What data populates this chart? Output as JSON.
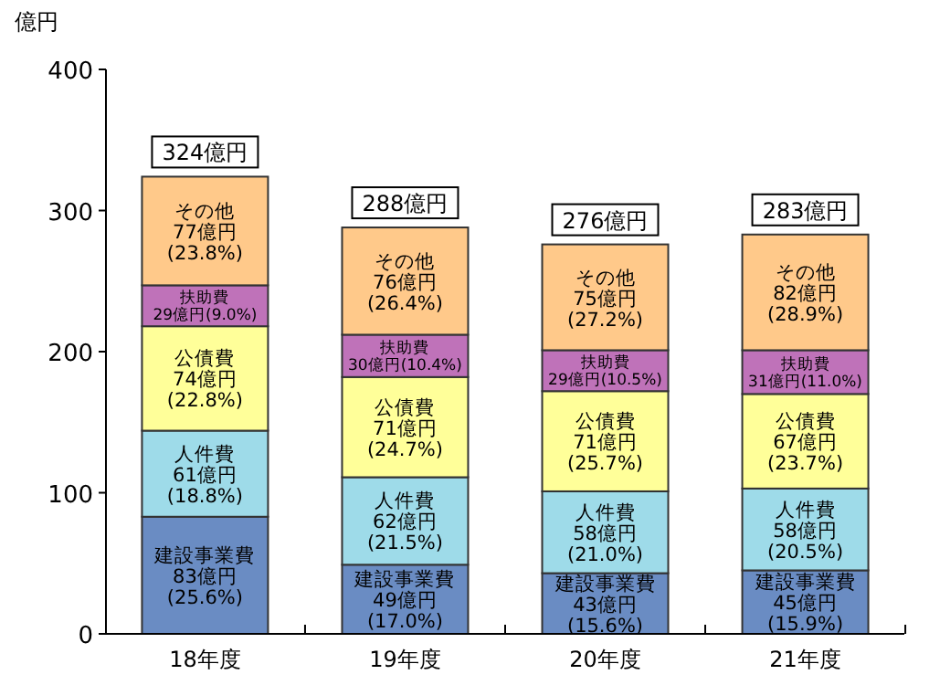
{
  "chart_data": {
    "type": "bar",
    "stacked": true,
    "ylabel": "億円",
    "categories": [
      "18年度",
      "19年度",
      "20年度",
      "21年度"
    ],
    "ylim": [
      0,
      400
    ],
    "yticks": [
      0,
      100,
      200,
      300,
      400
    ],
    "grid": false,
    "series": [
      {
        "name": "建設事業費",
        "color": "#6a8cc3",
        "values": [
          83,
          49,
          43,
          45
        ],
        "value_labels": [
          "83億円\n(25.6%)",
          "49億円\n(17.0%)",
          "43億円\n(15.6%)",
          "45億円\n(15.9%)"
        ]
      },
      {
        "name": "人件費",
        "color": "#9edbe9",
        "values": [
          61,
          62,
          58,
          58
        ],
        "value_labels": [
          "61億円\n(18.8%)",
          "62億円\n(21.5%)",
          "58億円\n(21.0%)",
          "58億円\n(20.5%)"
        ]
      },
      {
        "name": "公債費",
        "color": "#ffff99",
        "values": [
          74,
          71,
          71,
          67
        ],
        "value_labels": [
          "74億円\n(22.8%)",
          "71億円\n(24.7%)",
          "71億円\n(25.7%)",
          "67億円\n(23.7%)"
        ]
      },
      {
        "name": "扶助費",
        "color": "#bf72b9",
        "values": [
          29,
          30,
          29,
          31
        ],
        "value_labels": [
          "29億円(9.0%)",
          "30億円(10.4%)",
          "29億円(10.5%)",
          "31億円(11.0%)"
        ]
      },
      {
        "name": "その他",
        "color": "#ffc98a",
        "values": [
          77,
          76,
          75,
          82
        ],
        "value_labels": [
          "77億円\n(23.8%)",
          "76億円\n(26.4%)",
          "75億円\n(27.2%)",
          "82億円\n(28.9%)"
        ]
      }
    ],
    "totals": [
      "324億円",
      "288億円",
      "276億円",
      "283億円"
    ]
  }
}
